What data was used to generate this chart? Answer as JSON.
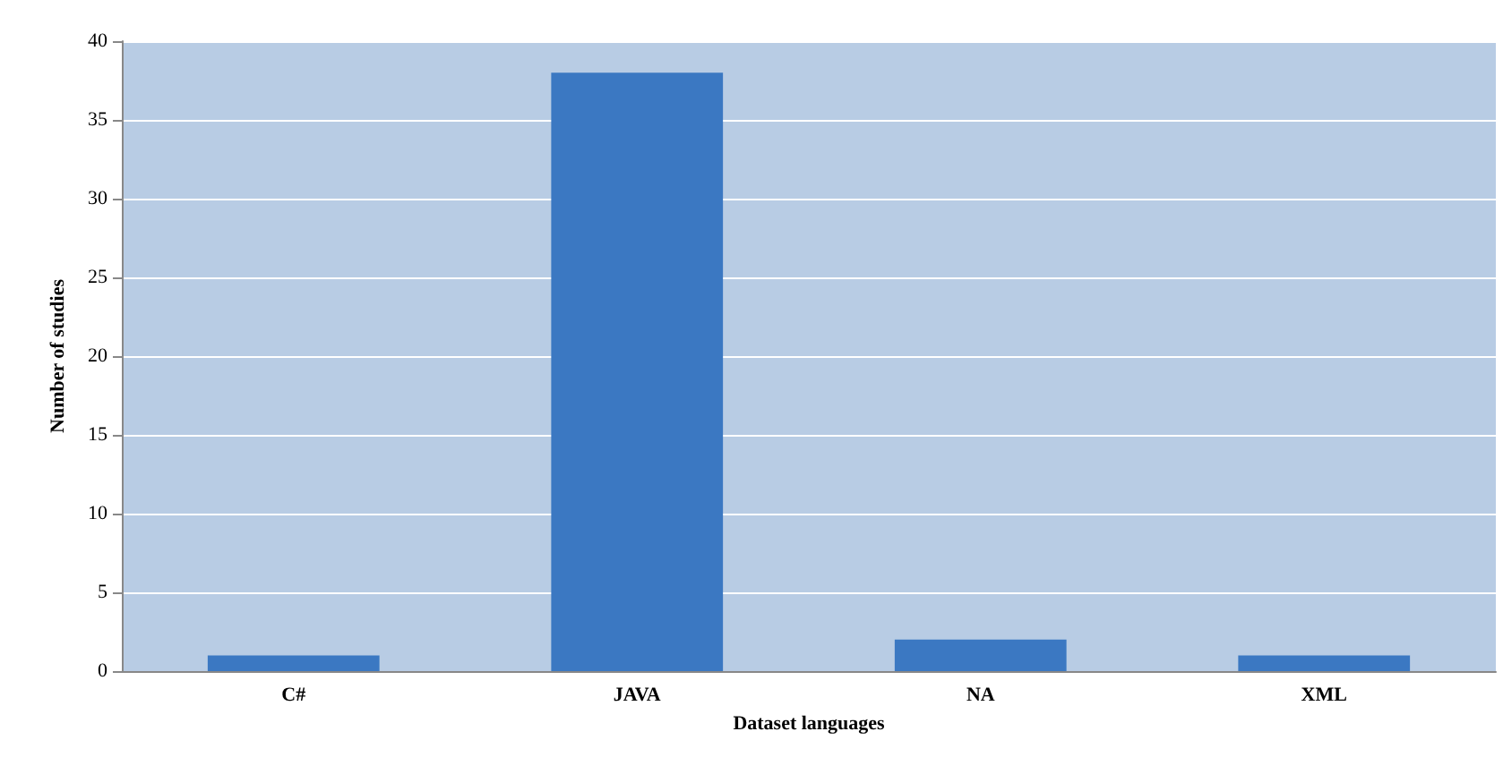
{
  "chart_data": {
    "type": "bar",
    "xlabel": "Dataset languages",
    "ylabel": "Number of studies",
    "categories": [
      "C#",
      "JAVA",
      "NA",
      "XML"
    ],
    "values": [
      1,
      38,
      2,
      1
    ],
    "color": "#3b78c2",
    "ylim": [
      0,
      40
    ],
    "yticks": [
      0,
      5,
      10,
      15,
      20,
      25,
      30,
      35,
      40
    ],
    "grid": "y"
  }
}
